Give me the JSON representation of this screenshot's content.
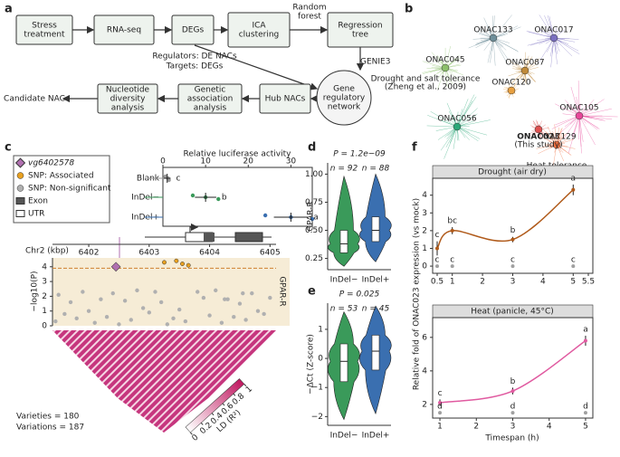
{
  "panel_labels": [
    "a",
    "b",
    "c",
    "d",
    "e",
    "f"
  ],
  "workflow": {
    "steps": [
      [
        "Stress",
        "treatment"
      ],
      [
        "RNA-seq"
      ],
      [
        "DEGs"
      ],
      [
        "ICA",
        "clustering"
      ],
      [
        "Regression",
        "tree"
      ],
      [
        "Gene",
        "regulatory",
        "network"
      ],
      [
        "Hub NACs"
      ],
      [
        "Genetic",
        "association",
        "analysis"
      ],
      [
        "Nucleotide",
        "diversity",
        "analysis"
      ],
      [
        "Candidate NAC"
      ]
    ],
    "edge_labels": [
      [
        "Random",
        "forest"
      ],
      [
        "Regulators: DE NACs"
      ],
      [
        "Targets: DEGs"
      ],
      [
        "GENIE3"
      ]
    ]
  },
  "network": {
    "nodes": [
      {
        "label": "ONAC133",
        "color": "#6f8f9a"
      },
      {
        "label": "ONAC017",
        "color": "#7a6fc0"
      },
      {
        "label": "ONAC045",
        "color": "#8cc06a"
      },
      {
        "label": "ONAC087",
        "color": "#c08a3a"
      },
      {
        "label": "ONAC120",
        "color": "#e8a040"
      },
      {
        "label": "ONAC105",
        "color": "#e8479a"
      },
      {
        "label": "ONAC056",
        "color": "#2aa878"
      },
      {
        "label": "ONAC023",
        "color": "#e05050"
      },
      {
        "label": "ONAC129",
        "color": "#f07040"
      }
    ],
    "annotations": [
      [
        "Drought and salt tolerance",
        "(Zheng et al., 2009)"
      ],
      [
        "(This study)"
      ],
      [
        "Heat tolerance",
        "(Ren et al., 2021)"
      ]
    ]
  },
  "gene_legend": [
    "vg6402578",
    "SNP: Associated",
    "SNP: Non-significant",
    "Exon",
    "UTR"
  ],
  "ld": {
    "label": "LD (R²)",
    "ticks": [
      0,
      0.2,
      0.4,
      0.6,
      0.8,
      1
    ],
    "notes": [
      "Varieties = 180",
      "Variations = 187"
    ]
  },
  "f_ylabel": "Relative fold of ONAC023 expression (vs mock)",
  "chart_data": [
    {
      "type": "dot",
      "title": "Relative luciferase activity",
      "categories": [
        "Blank",
        "InDel−",
        "InDel+"
      ],
      "colors": [
        "#999999",
        "#3a9a5a",
        "#3a6fb0"
      ],
      "values": [
        1,
        10,
        30
      ],
      "errors": [
        0.8,
        2.5,
        4
      ],
      "points": [
        [
          0.6,
          1.2,
          1.4
        ],
        [
          7,
          10,
          13
        ],
        [
          24,
          30,
          35
        ]
      ],
      "letters": [
        "c",
        "b",
        "a"
      ],
      "xlim": [
        0,
        35
      ],
      "xticks": [
        0,
        10,
        20,
        30
      ]
    },
    {
      "type": "scatter",
      "xlabel": "Chr2 (kbp)",
      "ylabel": "−log10(P)",
      "strip": "GPAR-R",
      "xlim": [
        6401.4,
        6405.1
      ],
      "ylim": [
        0,
        4.6
      ],
      "xticks": [
        6402,
        6403,
        6404,
        6405
      ],
      "yticks": [
        0,
        1,
        2,
        3,
        4
      ],
      "threshold": 3.9,
      "series": [
        {
          "name": "SNP: Non-significant",
          "color": "#b0b0b0",
          "x": [
            6401.45,
            6401.5,
            6401.6,
            6401.7,
            6401.8,
            6401.9,
            6402.0,
            6402.1,
            6402.2,
            6402.3,
            6402.4,
            6402.6,
            6402.7,
            6402.8,
            6402.9,
            6403.0,
            6403.1,
            6403.2,
            6403.4,
            6403.5,
            6403.6,
            6403.8,
            6403.9,
            6404.0,
            6404.1,
            6404.2,
            6404.3,
            6404.4,
            6404.5,
            6404.6,
            6404.7,
            6404.8,
            6404.9,
            6405.0,
            6402.5,
            6403.3,
            6404.25,
            6404.55
          ],
          "values": [
            0.3,
            2.1,
            0.8,
            1.6,
            0.5,
            2.3,
            1.0,
            0.2,
            1.8,
            0.6,
            2.2,
            1.7,
            0.4,
            2.4,
            1.2,
            0.9,
            2.3,
            1.6,
            0.5,
            1.1,
            0.3,
            2.3,
            1.9,
            0.7,
            2.4,
            0.2,
            1.8,
            0.6,
            1.5,
            0.4,
            2.2,
            1.0,
            0.8,
            1.9,
            0.1,
            0.1,
            1.8,
            2.2
          ]
        },
        {
          "name": "SNP: Associated",
          "color": "#e8a020",
          "x": [
            6403.25,
            6403.45,
            6403.55,
            6403.65
          ],
          "values": [
            4.3,
            4.4,
            4.2,
            4.1
          ]
        },
        {
          "name": "vg6402578",
          "color": "#b070b0",
          "x": [
            6402.45
          ],
          "values": [
            4.0
          ]
        }
      ]
    },
    {
      "type": "violin",
      "title": "P = 1.2e−09",
      "ylabel": "GPAR-R",
      "categories": [
        "InDel−",
        "InDel+"
      ],
      "n_labels": [
        "n = 92",
        "n = 88"
      ],
      "colors": [
        "#3a9a5a",
        "#3a6fb0"
      ],
      "ylim": [
        0.15,
        1.1
      ],
      "yticks": [
        {
          "value": 0.25,
          "label": "0.25"
        },
        {
          "value": 0.5,
          "label": "0.50"
        },
        {
          "value": 0.75,
          "label": "0.75"
        },
        {
          "value": 1,
          "label": "1.00"
        }
      ],
      "min": [
        0.18,
        0.22
      ],
      "q1": [
        0.3,
        0.4
      ],
      "median": [
        0.38,
        0.5
      ],
      "q3": [
        0.5,
        0.62
      ],
      "max": [
        0.98,
        1.0
      ]
    },
    {
      "type": "violin",
      "title": "P = 0.025",
      "ylabel": "−ΔCt (Z-score)",
      "categories": [
        "InDel−",
        "InDel+"
      ],
      "n_labels": [
        "n = 53",
        "n = 45"
      ],
      "colors": [
        "#3a9a5a",
        "#3a6fb0"
      ],
      "ylim": [
        -2.3,
        1.9
      ],
      "yticks": [
        {
          "value": -2,
          "label": "−2"
        },
        {
          "value": -1,
          "label": "−1"
        },
        0,
        1
      ],
      "min": [
        -2.1,
        -1.9
      ],
      "q1": [
        -0.8,
        -0.4
      ],
      "median": [
        -0.1,
        0.25
      ],
      "q3": [
        0.5,
        0.8
      ],
      "max": [
        1.6,
        1.8
      ]
    },
    {
      "type": "line",
      "title": "Drought (air dry)",
      "xlim": [
        0.35,
        5.65
      ],
      "ylim": [
        -0.2,
        4.8
      ],
      "xticks": [
        0.5,
        1,
        2,
        3,
        4,
        5,
        5.5
      ],
      "yticks": [
        0,
        1,
        2,
        3,
        4
      ],
      "x": [
        0.5,
        1,
        3,
        5
      ],
      "series": [
        {
          "color": "#b05a1a",
          "values": [
            1.0,
            2.0,
            1.5,
            4.3
          ],
          "errors": [
            0.4,
            0.2,
            0.15,
            0.3
          ],
          "letters": [
            "c",
            "bc",
            "b",
            "a"
          ]
        },
        {
          "color": "#a0a0a0",
          "values": [
            0,
            0,
            0,
            0
          ],
          "letters": [
            "c",
            "c",
            "c",
            "c"
          ]
        }
      ]
    },
    {
      "type": "line",
      "title": "Heat (panicle, 45°C)",
      "xlabel": "Timespan (h)",
      "xlim": [
        0.8,
        5.2
      ],
      "ylim": [
        1.4,
        6.8
      ],
      "xticks": [
        1,
        2,
        3,
        4,
        5
      ],
      "yticks": [
        2,
        4,
        6
      ],
      "x": [
        1,
        3,
        5
      ],
      "series": [
        {
          "color": "#e05aa0",
          "values": [
            2.1,
            2.8,
            5.8
          ],
          "errors": [
            0.2,
            0.2,
            0.3
          ],
          "letters": [
            "c",
            "b",
            "a"
          ]
        },
        {
          "color": "#a0a0a0",
          "values": [
            1.5,
            1.5,
            1.5
          ],
          "letters": [
            "d",
            "d",
            "d"
          ]
        }
      ]
    }
  ]
}
